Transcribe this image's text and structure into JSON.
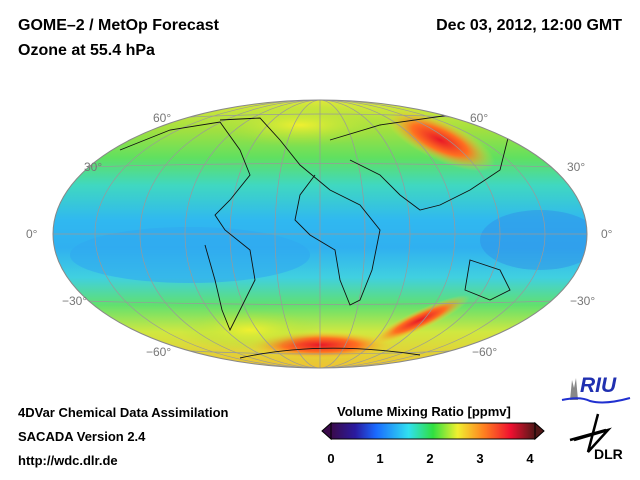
{
  "header": {
    "title": "GOME–2 / MetOp Forecast",
    "subtitle": "Ozone at 55.4 hPa",
    "datetime": "Dec 03, 2012, 12:00 GMT"
  },
  "map": {
    "projection": "Hammer (global)",
    "lat_labels_left": [
      "60°",
      "30°",
      "0°",
      "−30°",
      "−60°"
    ],
    "lat_labels_right": [
      "60°",
      "30°",
      "0°",
      "−30°",
      "−60°"
    ]
  },
  "footer": {
    "line1": "4DVar Chemical Data Assimilation",
    "line2": "SACADA Version 2.4",
    "line3": "http://wdc.dlr.de"
  },
  "colorbar": {
    "title": "Volume Mixing Ratio [ppmv]",
    "ticks": [
      "0",
      "1",
      "2",
      "3",
      "4"
    ],
    "range": [
      0,
      4
    ],
    "colors": [
      "#3a0a4a",
      "#2a1aa0",
      "#1a6aff",
      "#30e0f0",
      "#30e040",
      "#f0f030",
      "#ff8020",
      "#f01030",
      "#501818"
    ]
  },
  "logos": {
    "riu": "RIU",
    "dlr": "DLR"
  }
}
